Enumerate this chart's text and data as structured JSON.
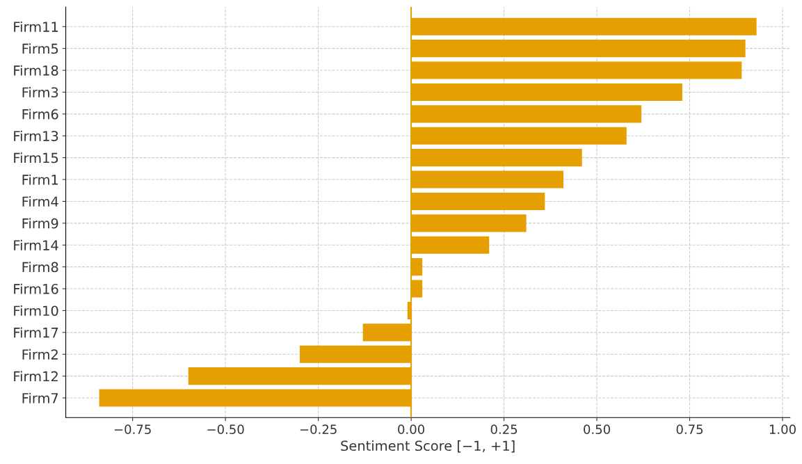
{
  "chart_data": {
    "type": "bar",
    "orientation": "horizontal",
    "xlabel": "Sentiment Score [−1, +1]",
    "categories": [
      "Firm11",
      "Firm5",
      "Firm18",
      "Firm3",
      "Firm6",
      "Firm13",
      "Firm15",
      "Firm1",
      "Firm4",
      "Firm9",
      "Firm14",
      "Firm8",
      "Firm16",
      "Firm10",
      "Firm17",
      "Firm2",
      "Firm12",
      "Firm7"
    ],
    "values": [
      0.93,
      0.9,
      0.89,
      0.73,
      0.62,
      0.58,
      0.46,
      0.41,
      0.36,
      0.31,
      0.21,
      0.03,
      0.03,
      -0.01,
      -0.13,
      -0.3,
      -0.6,
      -0.84
    ],
    "color": "#e69f00",
    "xlim": [
      -0.93,
      1.02
    ],
    "xticks": [
      {
        "value": -0.75,
        "label": "−0.75"
      },
      {
        "value": -0.5,
        "label": "−0.50"
      },
      {
        "value": -0.25,
        "label": "−0.25"
      },
      {
        "value": 0,
        "label": "0.00"
      },
      {
        "value": 0.25,
        "label": "0.25"
      },
      {
        "value": 0.5,
        "label": "0.50"
      },
      {
        "value": 0.75,
        "label": "0.75"
      },
      {
        "value": 1.0,
        "label": "1.00"
      }
    ],
    "ref_lines": [
      {
        "axis": "x",
        "value": 0,
        "color": "#e69f00",
        "line_style": "solid"
      }
    ],
    "grid": true
  }
}
